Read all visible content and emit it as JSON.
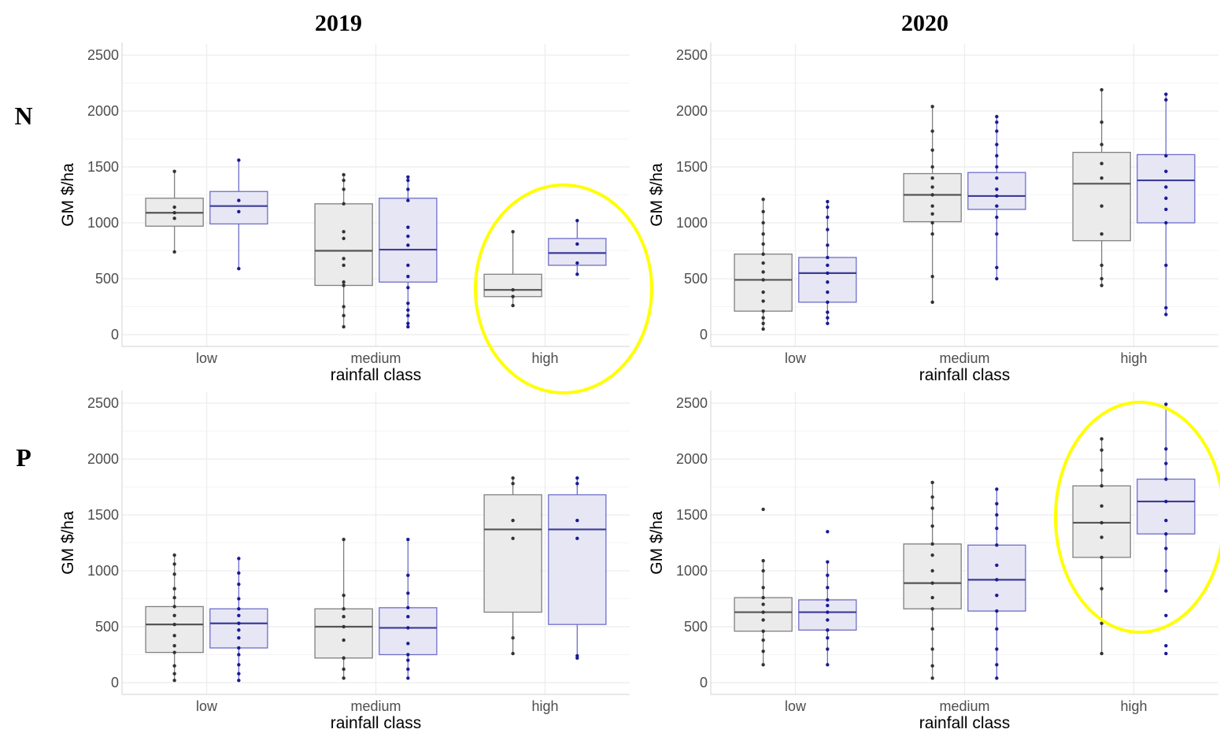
{
  "figure": {
    "col_titles": [
      "2019",
      "2020"
    ],
    "row_labels": [
      "N",
      "P"
    ],
    "highlight_color": "#ffff00",
    "colors": {
      "box_a_fill": "#ebebeb",
      "box_a_stroke": "#808080",
      "box_b_fill": "#e6e6f5",
      "box_b_stroke": "#6e6ec8",
      "points_a": "#333333",
      "points_b": "#1a1a96"
    }
  },
  "chart_data": [
    {
      "type": "box",
      "panel": "N 2019",
      "xlabel": "rainfall class",
      "ylabel": "GM $/ha",
      "categories": [
        "low",
        "medium",
        "high"
      ],
      "ylim": [
        0,
        2500
      ],
      "yticks": [
        0,
        500,
        1000,
        1500,
        2000,
        2500
      ],
      "grid": true,
      "highlighted_category": "high",
      "series": [
        {
          "boxes": [
            {
              "min": 740,
              "q1": 970,
              "median": 1090,
              "q3": 1220,
              "max": 1460,
              "points": [
                740,
                1040,
                1090,
                1140,
                1460
              ]
            },
            {
              "min": 70,
              "q1": 440,
              "median": 750,
              "q3": 1170,
              "max": 1430,
              "points": [
                70,
                170,
                250,
                440,
                470,
                620,
                680,
                860,
                920,
                1170,
                1300,
                1380,
                1430
              ]
            },
            {
              "min": 260,
              "q1": 340,
              "median": 400,
              "q3": 540,
              "max": 920,
              "points": [
                260,
                340,
                400,
                920
              ]
            }
          ]
        },
        {
          "boxes": [
            {
              "min": 590,
              "q1": 990,
              "median": 1150,
              "q3": 1280,
              "max": 1560,
              "points": [
                590,
                1100,
                1200,
                1560
              ]
            },
            {
              "min": 70,
              "q1": 470,
              "median": 760,
              "q3": 1220,
              "max": 1410,
              "points": [
                70,
                100,
                170,
                220,
                280,
                420,
                520,
                620,
                800,
                880,
                960,
                1200,
                1300,
                1380,
                1410
              ]
            },
            {
              "min": 540,
              "q1": 620,
              "median": 730,
              "q3": 860,
              "max": 1020,
              "points": [
                540,
                640,
                810,
                1020
              ]
            }
          ]
        }
      ]
    },
    {
      "type": "box",
      "panel": "N 2020",
      "xlabel": "rainfall class",
      "ylabel": "GM $/ha",
      "categories": [
        "low",
        "medium",
        "high"
      ],
      "ylim": [
        0,
        2500
      ],
      "yticks": [
        0,
        500,
        1000,
        1500,
        2000,
        2500
      ],
      "grid": true,
      "series": [
        {
          "boxes": [
            {
              "min": 50,
              "q1": 210,
              "median": 490,
              "q3": 720,
              "max": 1210,
              "points": [
                50,
                100,
                150,
                210,
                300,
                380,
                490,
                560,
                640,
                720,
                810,
                900,
                1000,
                1100,
                1210
              ]
            },
            {
              "min": 290,
              "q1": 1010,
              "median": 1250,
              "q3": 1440,
              "max": 2040,
              "points": [
                290,
                520,
                900,
                1000,
                1080,
                1150,
                1250,
                1320,
                1400,
                1500,
                1650,
                1820,
                2040
              ]
            },
            {
              "min": 440,
              "q1": 840,
              "median": 1350,
              "q3": 1630,
              "max": 2190,
              "points": [
                440,
                500,
                620,
                900,
                1150,
                1400,
                1530,
                1700,
                1900,
                2190
              ]
            }
          ]
        },
        {
          "boxes": [
            {
              "min": 100,
              "q1": 290,
              "median": 550,
              "q3": 690,
              "max": 1190,
              "points": [
                100,
                150,
                200,
                290,
                380,
                470,
                550,
                620,
                690,
                800,
                940,
                1050,
                1140,
                1190
              ]
            },
            {
              "min": 500,
              "q1": 1120,
              "median": 1240,
              "q3": 1450,
              "max": 1950,
              "points": [
                500,
                600,
                900,
                1050,
                1150,
                1240,
                1300,
                1400,
                1500,
                1600,
                1700,
                1820,
                1900,
                1950
              ]
            },
            {
              "min": 180,
              "q1": 1000,
              "median": 1380,
              "q3": 1610,
              "max": 2150,
              "points": [
                180,
                240,
                620,
                1000,
                1120,
                1220,
                1320,
                1460,
                1600,
                2100,
                2150
              ]
            }
          ]
        }
      ]
    },
    {
      "type": "box",
      "panel": "P 2019",
      "xlabel": "rainfall class",
      "ylabel": "GM $/ha",
      "categories": [
        "low",
        "medium",
        "high"
      ],
      "ylim": [
        0,
        2500
      ],
      "yticks": [
        0,
        500,
        1000,
        1500,
        2000,
        2500
      ],
      "grid": true,
      "series": [
        {
          "boxes": [
            {
              "min": 20,
              "q1": 270,
              "median": 520,
              "q3": 680,
              "max": 1140,
              "points": [
                20,
                80,
                150,
                270,
                330,
                420,
                520,
                600,
                680,
                760,
                840,
                970,
                1060,
                1140
              ]
            },
            {
              "min": 40,
              "q1": 220,
              "median": 500,
              "q3": 660,
              "max": 1280,
              "points": [
                40,
                120,
                220,
                380,
                500,
                590,
                660,
                780,
                1280
              ]
            },
            {
              "min": 260,
              "q1": 630,
              "median": 1370,
              "q3": 1680,
              "max": 1830,
              "points": [
                260,
                400,
                1290,
                1450,
                1780,
                1830
              ]
            }
          ]
        },
        {
          "boxes": [
            {
              "min": 20,
              "q1": 310,
              "median": 530,
              "q3": 660,
              "max": 1110,
              "points": [
                20,
                80,
                160,
                250,
                310,
                400,
                470,
                530,
                600,
                660,
                750,
                880,
                980,
                1110
              ]
            },
            {
              "min": 40,
              "q1": 250,
              "median": 490,
              "q3": 670,
              "max": 1280,
              "points": [
                40,
                120,
                200,
                250,
                350,
                490,
                590,
                670,
                800,
                960,
                1280
              ]
            },
            {
              "min": 220,
              "q1": 520,
              "median": 1370,
              "q3": 1680,
              "max": 1830,
              "points": [
                220,
                240,
                1290,
                1450,
                1780,
                1830
              ]
            }
          ]
        }
      ]
    },
    {
      "type": "box",
      "panel": "P 2020",
      "xlabel": "rainfall class",
      "ylabel": "GM $/ha",
      "categories": [
        "low",
        "medium",
        "high"
      ],
      "ylim": [
        0,
        2500
      ],
      "yticks": [
        0,
        500,
        1000,
        1500,
        2000,
        2500
      ],
      "grid": true,
      "highlighted_category": "high",
      "series": [
        {
          "boxes": [
            {
              "min": 160,
              "q1": 460,
              "median": 630,
              "q3": 760,
              "max": 1090,
              "points": [
                160,
                280,
                380,
                460,
                560,
                630,
                700,
                760,
                850,
                1000,
                1090,
                1550
              ]
            },
            {
              "min": 40,
              "q1": 660,
              "median": 890,
              "q3": 1240,
              "max": 1790,
              "points": [
                40,
                150,
                300,
                480,
                660,
                760,
                890,
                1000,
                1140,
                1240,
                1400,
                1560,
                1660,
                1790
              ]
            },
            {
              "min": 260,
              "q1": 1120,
              "median": 1430,
              "q3": 1760,
              "max": 2180,
              "points": [
                260,
                530,
                840,
                1120,
                1300,
                1430,
                1580,
                1760,
                1900,
                2080,
                2180
              ]
            }
          ]
        },
        {
          "boxes": [
            {
              "min": 160,
              "q1": 470,
              "median": 630,
              "q3": 740,
              "max": 1080,
              "points": [
                160,
                300,
                400,
                470,
                560,
                630,
                690,
                740,
                850,
                960,
                1080,
                1350
              ]
            },
            {
              "min": 40,
              "q1": 640,
              "median": 920,
              "q3": 1230,
              "max": 1730,
              "points": [
                40,
                160,
                300,
                480,
                640,
                780,
                920,
                1050,
                1230,
                1380,
                1500,
                1600,
                1730
              ]
            },
            {
              "min": 820,
              "q1": 1330,
              "median": 1620,
              "q3": 1820,
              "max": 2490,
              "points": [
                260,
                330,
                600,
                820,
                1000,
                1200,
                1330,
                1450,
                1620,
                1820,
                1960,
                2090,
                2490
              ]
            }
          ]
        }
      ]
    }
  ]
}
